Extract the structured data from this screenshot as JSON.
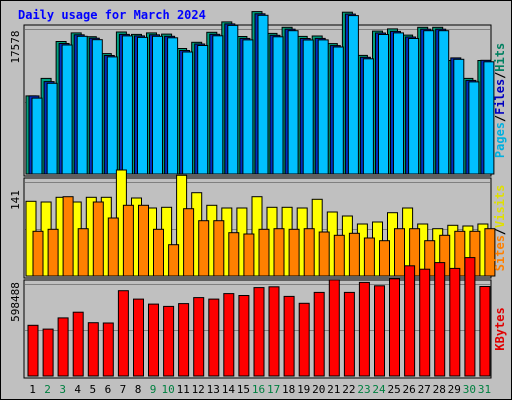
{
  "chart_data": {
    "type": "bar",
    "title": "Daily usage for March 2024",
    "categories": [
      "1",
      "2",
      "3",
      "4",
      "5",
      "6",
      "7",
      "8",
      "9",
      "10",
      "11",
      "12",
      "13",
      "14",
      "15",
      "16",
      "17",
      "18",
      "19",
      "20",
      "21",
      "22",
      "23",
      "24",
      "25",
      "26",
      "27",
      "28",
      "29",
      "30",
      "31"
    ],
    "weekend_days": [
      "2",
      "3",
      "9",
      "10",
      "16",
      "17",
      "23",
      "24",
      "30",
      "31"
    ],
    "panels": [
      {
        "name": "hits-panel",
        "ymax_label": "17578",
        "ymax": 17578,
        "legend": [
          {
            "text": "Pages",
            "color": "#00b0e0"
          },
          {
            "text": "Files",
            "color": "#0000c0"
          },
          {
            "text": "Hits",
            "color": "#008060"
          }
        ],
        "series": [
          {
            "name": "Hits",
            "color": "#00a080",
            "values": [
              9470,
              11590,
              16060,
              17110,
              16640,
              14600,
              17210,
              16920,
              17110,
              16960,
              15220,
              15960,
              17180,
              18440,
              16670,
              19690,
              17050,
              17790,
              16680,
              16730,
              15810,
              19620,
              14380,
              17320,
              17590,
              16840,
              17790,
              17790,
              13760,
              11590,
              13760
            ]
          },
          {
            "name": "Files",
            "color": "#0030c0",
            "values": [
              9470,
              11200,
              15820,
              16870,
              16460,
              14370,
              16920,
              16740,
              16870,
              16690,
              14970,
              15760,
              16930,
              18200,
              16440,
              19420,
              16810,
              17550,
              16430,
              16440,
              15570,
              19380,
              14150,
              17090,
              17290,
              16610,
              17550,
              17550,
              14080,
              11350,
              13780
            ]
          },
          {
            "name": "Pages",
            "color": "#00c0ff",
            "values": [
              9200,
              11000,
              15640,
              16690,
              16280,
              14190,
              16740,
              16560,
              16690,
              16510,
              14790,
              15580,
              16750,
              18020,
              16260,
              19240,
              16630,
              17370,
              16250,
              16260,
              15390,
              19200,
              13970,
              16910,
              17110,
              16430,
              17370,
              17370,
              13900,
              11170,
              13600
            ]
          }
        ]
      },
      {
        "name": "visits-panel",
        "ymax_label": "141",
        "ymax": 141,
        "legend": [
          {
            "text": "Sites",
            "color": "#ff8000"
          },
          {
            "text": "Visits",
            "color": "#e0e000"
          }
        ],
        "series": [
          {
            "name": "Visits",
            "color": "#ffff00",
            "values": [
              112,
              111,
              118,
              111,
              118,
              118,
              159,
              117,
              102,
              103,
              151,
              125,
              106,
              102,
              102,
              119,
              103,
              103,
              102,
              115,
              96,
              90,
              78,
              81,
              95,
              102,
              78,
              71,
              76,
              75,
              78
            ]
          },
          {
            "name": "Sites",
            "color": "#ff8000",
            "values": [
              67,
              70,
              119,
              71,
              111,
              87,
              106,
              106,
              70,
              47,
              101,
              83,
              83,
              65,
              63,
              70,
              71,
              70,
              71,
              66,
              61,
              64,
              57,
              53,
              71,
              71,
              53,
              61,
              67,
              67,
              71
            ]
          }
        ]
      },
      {
        "name": "kbytes-panel",
        "ymax_label": "598488",
        "ymax": 598488,
        "legend": [
          {
            "text": "KBytes",
            "color": "#e00000"
          }
        ],
        "series": [
          {
            "name": "KBytes",
            "color": "#ff0000",
            "values": [
              330000,
              305000,
              378000,
              415000,
              347000,
              345000,
              555000,
              500000,
              468000,
              453000,
              471000,
              510000,
              500000,
              536000,
              524000,
              575000,
              580000,
              518000,
              473000,
              544000,
              625000,
              544000,
              609000,
              587000,
              632000,
              717000,
              695000,
              738000,
              700000,
              770000,
              582000
            ]
          }
        ]
      }
    ]
  }
}
